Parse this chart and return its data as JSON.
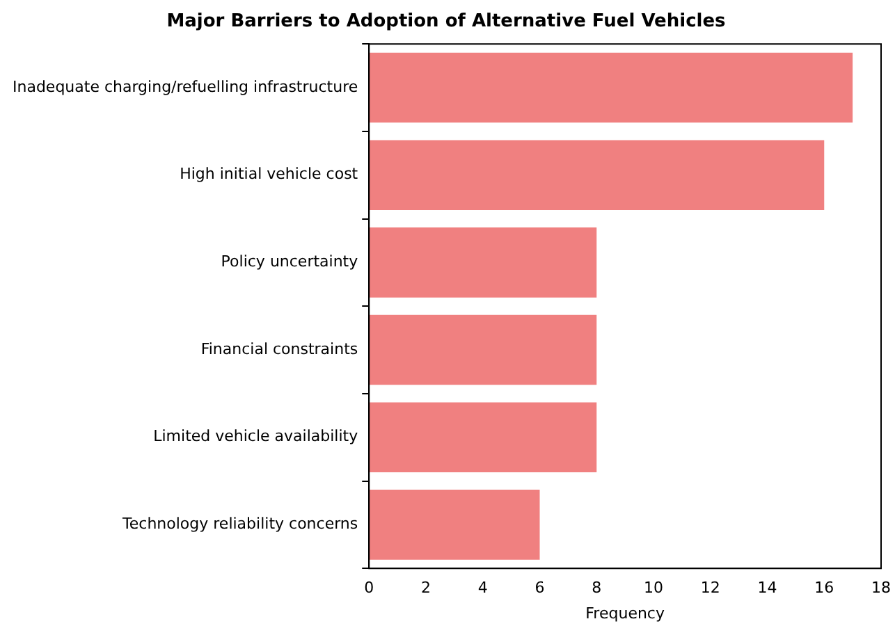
{
  "chart_data": {
    "type": "bar",
    "orientation": "horizontal",
    "title": "Major Barriers to Adoption of Alternative Fuel Vehicles",
    "xlabel": "Frequency",
    "categories": [
      "Inadequate charging/refuelling infrastructure",
      "High initial vehicle cost",
      "Policy uncertainty",
      "Financial constraints",
      "Limited vehicle availability",
      "Technology reliability concerns"
    ],
    "values": [
      17,
      16,
      8,
      8,
      8,
      6
    ],
    "color": "#f08080",
    "xlim": [
      0,
      18
    ],
    "xticks": [
      0,
      2,
      4,
      6,
      8,
      10,
      12,
      14,
      16,
      18
    ],
    "grid": false,
    "legend": false
  }
}
